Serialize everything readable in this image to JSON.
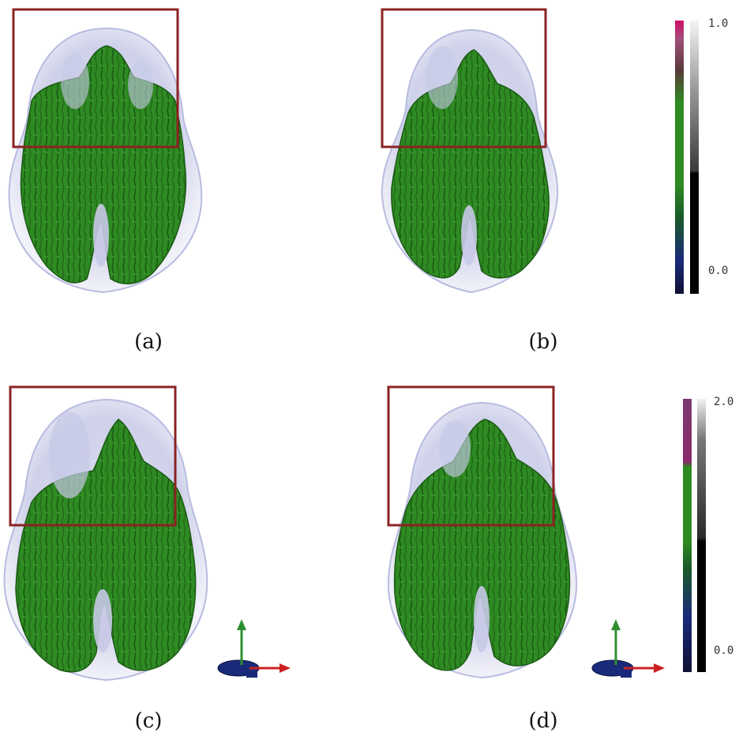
{
  "panels": [
    {
      "id": "a",
      "caption": "(a)"
    },
    {
      "id": "b",
      "caption": "(b)"
    },
    {
      "id": "c",
      "caption": "(c)"
    },
    {
      "id": "d",
      "caption": "(d)"
    }
  ],
  "colorbar_top": {
    "max_label": "1.0",
    "min_label": "0.0"
  },
  "colorbar_bottom": {
    "max_label": "2.0",
    "min_label": "0.0"
  },
  "colors": {
    "brain_outline": "#c9cbe6",
    "fiber_green": "#2e8a22",
    "fiber_dark": "#1b5a14",
    "roi_box": "#8b2323",
    "axis_green": "#2f8f2f",
    "axis_red": "#cc2222",
    "axis_base": "#1a2a7a"
  }
}
